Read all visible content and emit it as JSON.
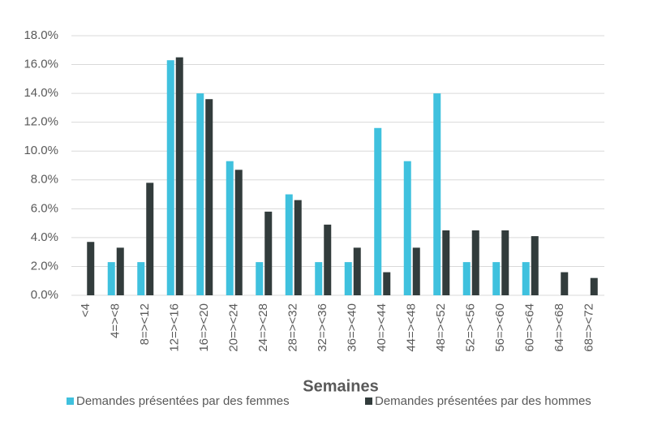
{
  "chart_data": {
    "type": "bar",
    "x_label": "Semaines",
    "categories": [
      "<4",
      "4=><8",
      "8=><12",
      "12=><16",
      "16=><20",
      "20=><24",
      "24=><28",
      "28=><32",
      "32=><36",
      "36=><40",
      "40=><44",
      "44=><48",
      "48=><52",
      "52=><56",
      "56=><60",
      "60=><64",
      "64=><68",
      "68=><72"
    ],
    "series": [
      {
        "name": "Demandes présentées par des femmes",
        "color": "#3fc1de",
        "values": [
          0,
          2.3,
          2.3,
          16.3,
          14.0,
          9.3,
          2.3,
          7.0,
          2.3,
          2.3,
          11.6,
          9.3,
          14.0,
          2.3,
          2.3,
          2.3,
          0,
          0
        ]
      },
      {
        "name": "Demandes présentées par des hommes",
        "color": "#323c3c",
        "values": [
          3.7,
          3.3,
          7.8,
          16.5,
          13.6,
          8.7,
          5.8,
          6.6,
          4.9,
          3.3,
          1.6,
          3.3,
          4.5,
          4.5,
          4.5,
          4.1,
          1.6,
          1.2
        ]
      }
    ],
    "ylim": [
      0,
      18
    ],
    "yticks": [
      {
        "value": 0,
        "label": "0.0%"
      },
      {
        "value": 2,
        "label": "2.0%"
      },
      {
        "value": 4,
        "label": "4.0%"
      },
      {
        "value": 6,
        "label": "6.0%"
      },
      {
        "value": 8,
        "label": "8.0%"
      },
      {
        "value": 10,
        "label": "10.0%"
      },
      {
        "value": 12,
        "label": "12.0%"
      },
      {
        "value": 14,
        "label": "14.0%"
      },
      {
        "value": 16,
        "label": "16.0%"
      },
      {
        "value": 18,
        "label": "18.0%"
      }
    ],
    "grid": true,
    "legend": "bottom"
  }
}
